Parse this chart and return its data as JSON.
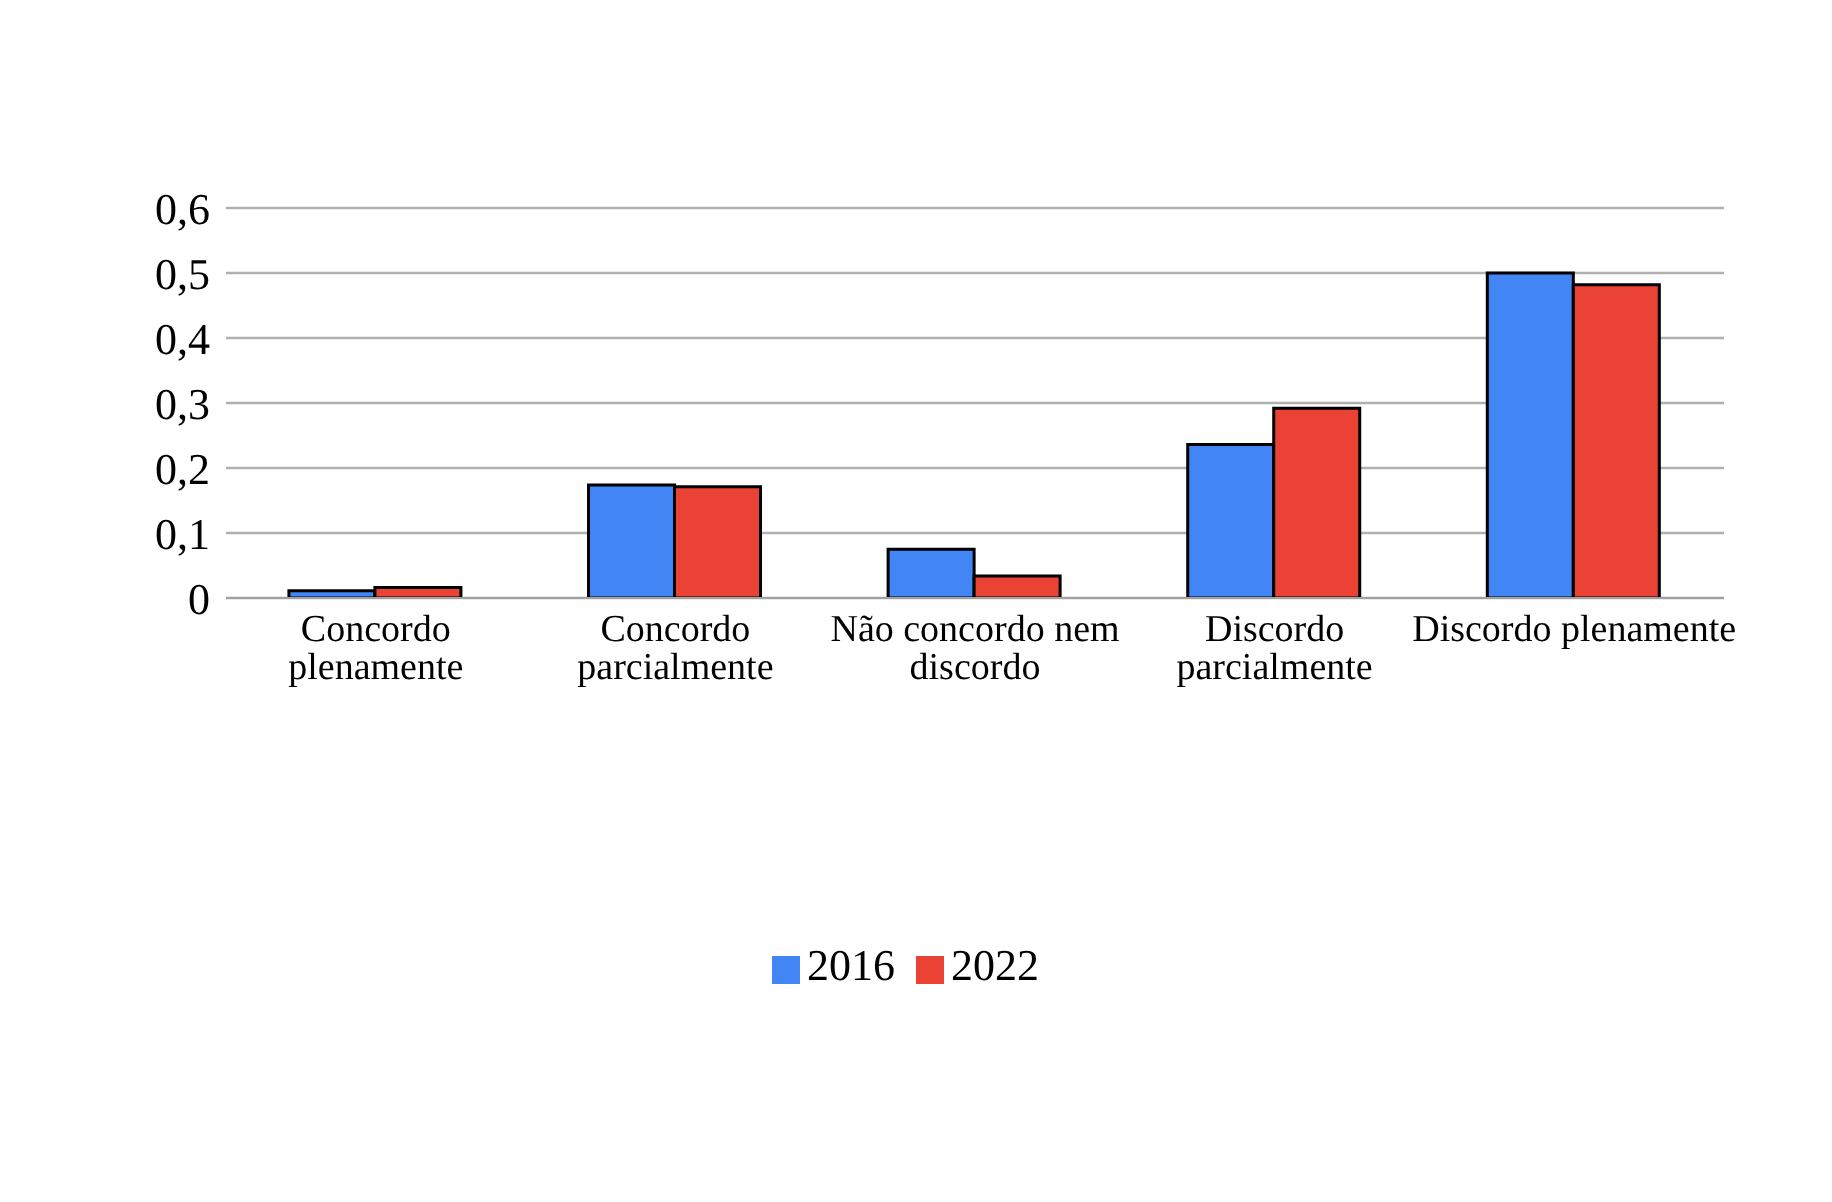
{
  "chart_data": {
    "type": "bar",
    "categories": [
      "Concordo plenamente",
      "Concordo parcialmente",
      "Não concordo nem discordo",
      "Discordo parcialmente",
      "Discordo plenamente"
    ],
    "series": [
      {
        "name": "2016",
        "color": "#4285f4",
        "values": [
          0.011,
          0.174,
          0.075,
          0.236,
          0.5
        ]
      },
      {
        "name": "2022",
        "color": "#ea4335",
        "values": [
          0.016,
          0.171,
          0.034,
          0.292,
          0.482
        ]
      }
    ],
    "ylim": [
      0,
      0.6
    ],
    "yticks": [
      {
        "value": 0,
        "label": "0"
      },
      {
        "value": 0.1,
        "label": "0,1"
      },
      {
        "value": 0.2,
        "label": "0,2"
      },
      {
        "value": 0.3,
        "label": "0,3"
      },
      {
        "value": 0.4,
        "label": "0,4"
      },
      {
        "value": 0.5,
        "label": "0,5"
      },
      {
        "value": 0.6,
        "label": "0,6"
      }
    ],
    "grid": "y",
    "legend": "bottom"
  }
}
